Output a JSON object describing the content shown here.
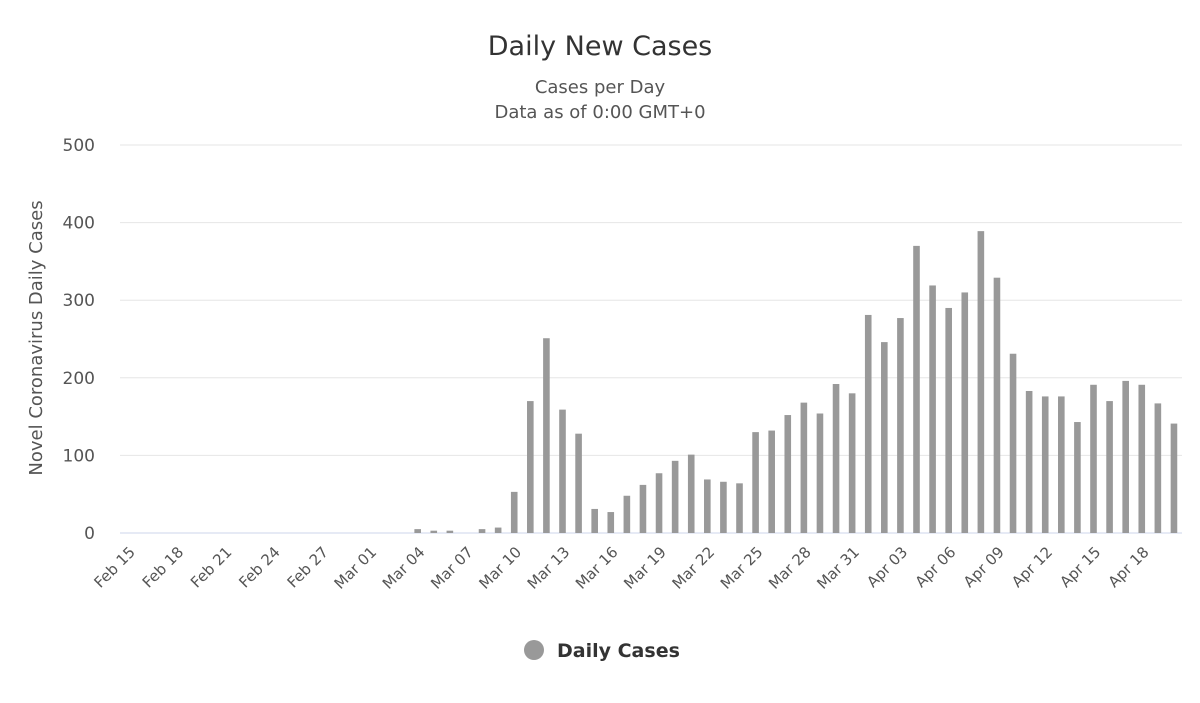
{
  "chart_data": {
    "type": "bar",
    "title": "Daily New Cases",
    "subtitle": "Cases per Day",
    "subtitle2": "Data as of 0:00 GMT+0",
    "xlabel": "",
    "ylabel": "Novel Coronavirus Daily Cases",
    "ylim": [
      0,
      500
    ],
    "yticks": [
      0,
      100,
      200,
      300,
      400,
      500
    ],
    "grid": true,
    "legend_position": "bottom-center",
    "series": [
      {
        "name": "Daily Cases",
        "color": "#999999",
        "values": [
          0,
          0,
          0,
          0,
          0,
          0,
          0,
          0,
          0,
          0,
          0,
          0,
          0,
          0,
          0,
          0,
          0,
          0,
          5,
          3,
          3,
          0,
          5,
          7,
          53,
          170,
          251,
          159,
          128,
          31,
          27,
          48,
          62,
          77,
          93,
          101,
          69,
          66,
          64,
          130,
          132,
          152,
          168,
          154,
          192,
          180,
          281,
          246,
          277,
          370,
          319,
          290,
          310,
          389,
          329,
          231,
          183,
          176,
          176,
          143,
          191,
          170,
          196,
          191,
          167,
          141
        ]
      }
    ],
    "categories": [
      "Feb 15",
      "Feb 16",
      "Feb 17",
      "Feb 18",
      "Feb 19",
      "Feb 20",
      "Feb 21",
      "Feb 22",
      "Feb 23",
      "Feb 24",
      "Feb 25",
      "Feb 26",
      "Feb 27",
      "Feb 28",
      "Feb 29",
      "Mar 01",
      "Mar 02",
      "Mar 03",
      "Mar 04",
      "Mar 05",
      "Mar 06",
      "Mar 07",
      "Mar 08",
      "Mar 09",
      "Mar 10",
      "Mar 11",
      "Mar 12",
      "Mar 13",
      "Mar 14",
      "Mar 15",
      "Mar 16",
      "Mar 17",
      "Mar 18",
      "Mar 19",
      "Mar 20",
      "Mar 21",
      "Mar 22",
      "Mar 23",
      "Mar 24",
      "Mar 25",
      "Mar 26",
      "Mar 27",
      "Mar 28",
      "Mar 29",
      "Mar 30",
      "Mar 31",
      "Apr 01",
      "Apr 02",
      "Apr 03",
      "Apr 04",
      "Apr 05",
      "Apr 06",
      "Apr 07",
      "Apr 08",
      "Apr 09",
      "Apr 10",
      "Apr 11",
      "Apr 12",
      "Apr 13",
      "Apr 14",
      "Apr 15",
      "Apr 16",
      "Apr 17",
      "Apr 18",
      "Apr 19",
      "Apr 20"
    ],
    "xtick_labels": [
      "Feb 15",
      "Feb 18",
      "Feb 21",
      "Feb 24",
      "Feb 27",
      "Mar 01",
      "Mar 04",
      "Mar 07",
      "Mar 10",
      "Mar 13",
      "Mar 16",
      "Mar 19",
      "Mar 22",
      "Mar 25",
      "Mar 28",
      "Mar 31",
      "Apr 03",
      "Apr 06",
      "Apr 09",
      "Apr 12",
      "Apr 15",
      "Apr 18"
    ],
    "xtick_every": 3
  }
}
